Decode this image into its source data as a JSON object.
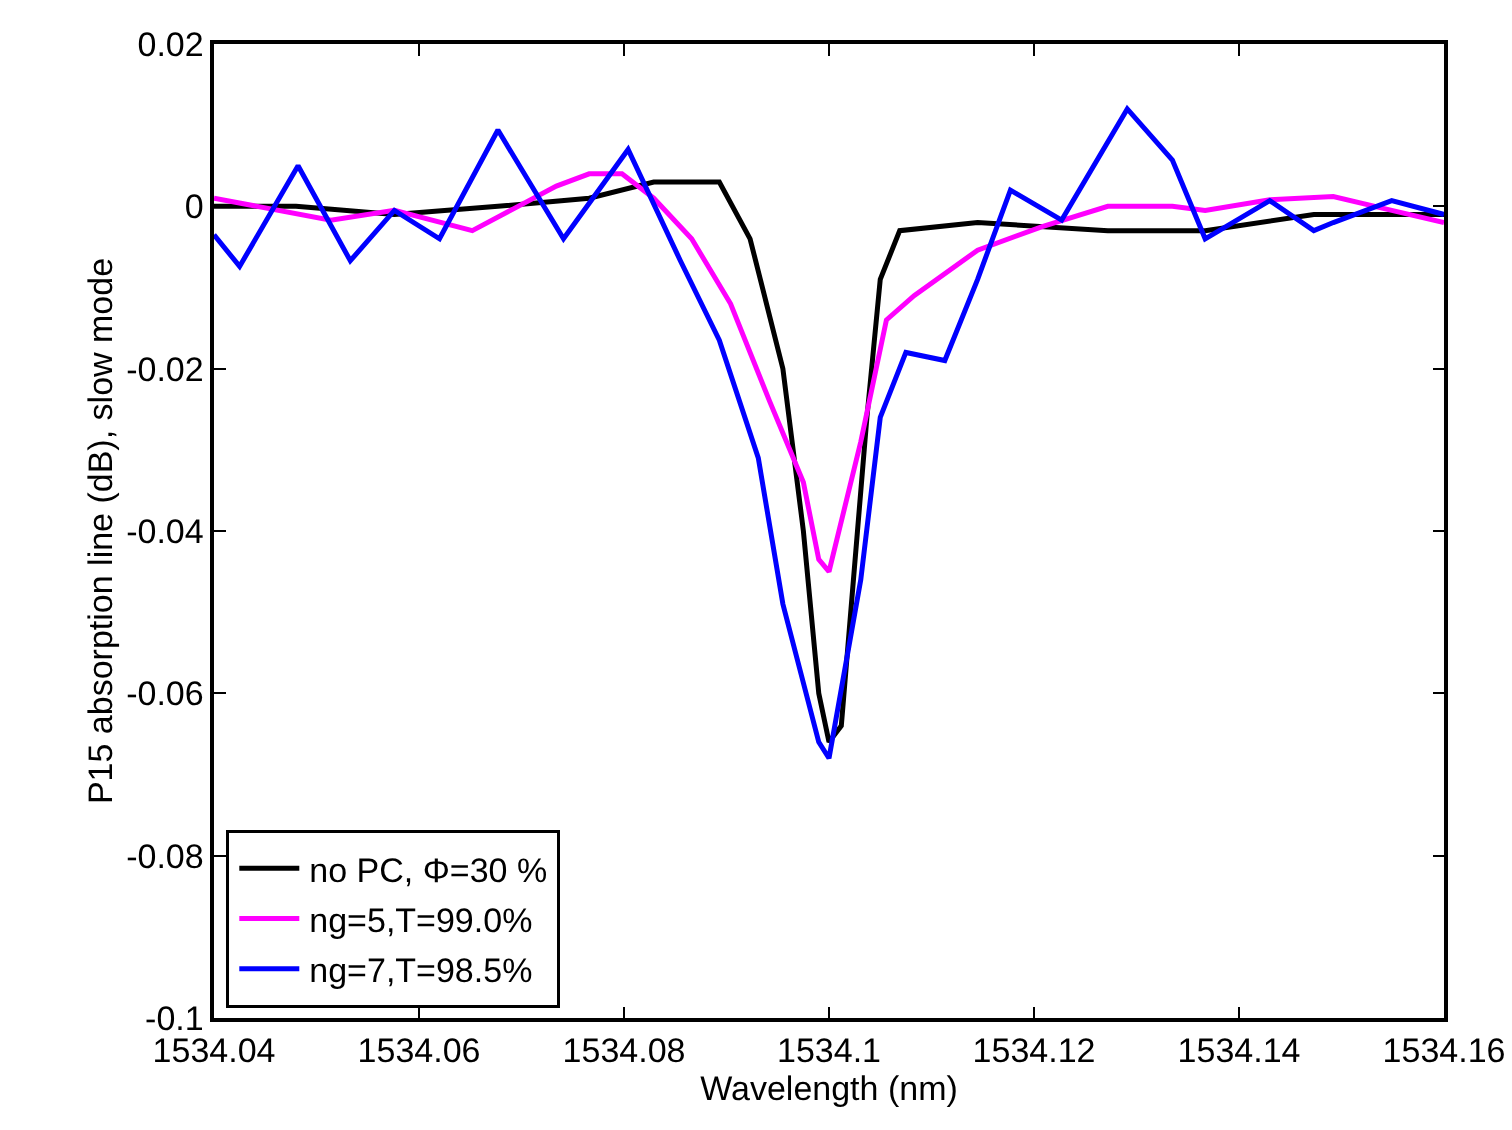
{
  "chart_data": {
    "type": "line",
    "xlabel": "Wavelength (nm)",
    "ylabel": "P15 absorption line (dB), slow mode",
    "xlim": [
      1534.04,
      1534.16
    ],
    "xticks": [
      1534.04,
      1534.06,
      1534.08,
      1534.1,
      1534.12,
      1534.14,
      1534.16
    ],
    "ylim": [
      -0.1,
      0.02
    ],
    "yticks": [
      -0.1,
      -0.08,
      -0.06,
      -0.04,
      -0.02,
      0,
      0.02
    ],
    "grid": false,
    "legend": "bottom left",
    "marker": "none",
    "line_style": "solid",
    "series": [
      {
        "name": "no PC, Φ=30 %",
        "color": "#000000",
        "x": [
          1534.04,
          1534.048,
          1534.0576,
          1534.0677,
          1534.0766,
          1534.0829,
          1534.0893,
          1534.0923,
          1534.0955,
          1534.0975,
          1534.099,
          1534.1,
          1534.1012,
          1534.1037,
          1534.105,
          1534.1069,
          1534.1145,
          1534.1272,
          1534.1367,
          1534.1473,
          1534.16
        ],
        "values": [
          0.0,
          0.0,
          -0.001,
          0.0,
          0.001,
          0.003,
          0.003,
          -0.004,
          -0.02,
          -0.04,
          -0.06,
          -0.066,
          -0.064,
          -0.026,
          -0.009,
          -0.003,
          -0.002,
          -0.003,
          -0.003,
          -0.001,
          -0.001
        ]
      },
      {
        "name": "ng=5,T=99.0%",
        "color": "#ff00ff",
        "x": [
          1534.04,
          1534.0514,
          1534.0576,
          1534.0652,
          1534.0734,
          1534.0766,
          1534.0798,
          1534.0829,
          1534.0866,
          1534.0904,
          1534.0942,
          1534.0975,
          1534.099,
          1534.1,
          1534.1031,
          1534.1056,
          1534.1083,
          1534.1145,
          1534.1208,
          1534.1272,
          1534.1335,
          1534.1367,
          1534.143,
          1534.1492,
          1534.1549,
          1534.16
        ],
        "values": [
          0.001,
          -0.0017,
          -0.0005,
          -0.003,
          0.0025,
          0.004,
          0.004,
          0.001,
          -0.004,
          -0.012,
          -0.024,
          -0.034,
          -0.0435,
          -0.045,
          -0.029,
          -0.014,
          -0.011,
          -0.0054,
          -0.0025,
          0.0,
          0.0,
          -0.0005,
          0.0008,
          0.0012,
          -0.0005,
          -0.002
        ]
      },
      {
        "name": "ng=7,T=98.5%",
        "color": "#0000ff",
        "x": [
          1534.04,
          1534.0425,
          1534.0482,
          1534.0533,
          1534.0576,
          1534.062,
          1534.0677,
          1534.0741,
          1534.0804,
          1534.0855,
          1534.0893,
          1534.0931,
          1534.0955,
          1534.099,
          1534.1,
          1534.1031,
          1534.105,
          1534.1075,
          1534.1113,
          1534.1145,
          1534.1177,
          1534.1227,
          1534.1291,
          1534.1335,
          1534.1367,
          1534.143,
          1534.1473,
          1534.1492,
          1534.1549,
          1534.16
        ],
        "values": [
          -0.0035,
          -0.0074,
          0.005,
          -0.0067,
          -0.0005,
          -0.004,
          0.0094,
          -0.004,
          0.007,
          -0.0067,
          -0.0165,
          -0.031,
          -0.049,
          -0.066,
          -0.068,
          -0.046,
          -0.026,
          -0.018,
          -0.019,
          -0.009,
          0.002,
          -0.0017,
          0.012,
          0.0057,
          -0.004,
          0.0007,
          -0.003,
          -0.002,
          0.0007,
          -0.001
        ]
      }
    ]
  }
}
